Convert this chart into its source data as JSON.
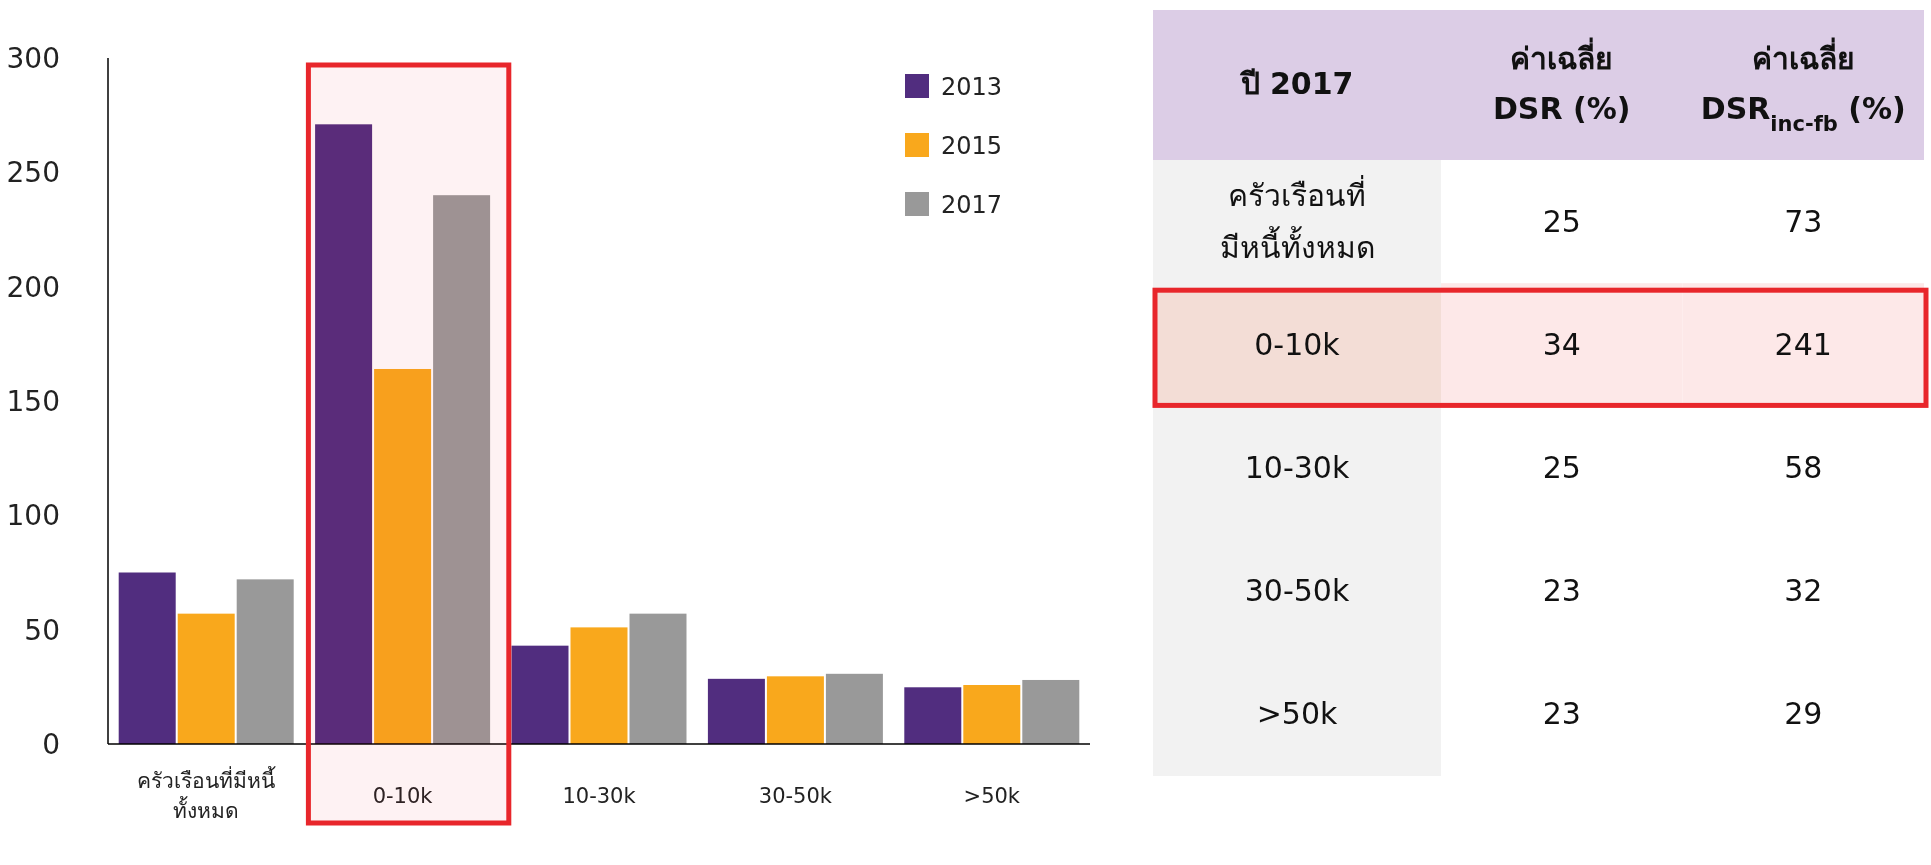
{
  "chart_data": [
    {
      "type": "bar",
      "categories": [
        "ครัวเรือนที่มีหนี้\nทั้งหมด",
        "0-10k",
        "10-30k",
        "30-50k",
        ">50k"
      ],
      "series": [
        {
          "name": "2013",
          "color": "#512d7f",
          "values": [
            75,
            271,
            43,
            28.5,
            24.8
          ]
        },
        {
          "name": "2015",
          "color": "#f9a81c",
          "values": [
            57,
            164,
            51,
            29.6,
            25.8
          ]
        },
        {
          "name": "2017",
          "color": "#999999",
          "values": [
            72,
            240,
            57,
            30.7,
            28
          ]
        }
      ],
      "ylim": [
        0,
        300
      ],
      "yticks": [
        0,
        50,
        100,
        150,
        200,
        250,
        300
      ],
      "grid": false,
      "legend": "top right",
      "bands": [
        {
          "axis": "x",
          "from": "0-10k",
          "to": "0-10k",
          "color": "#e8262b"
        }
      ]
    },
    {
      "type": "heatmap",
      "title": "ปี 2017",
      "data_labels": true,
      "categories": [
        "ค่าเฉลี่ย\nDSR (%)",
        "ค่าเฉลี่ย\nDSR$_{inc-fb}$ (%)"
      ],
      "y_categories": [
        "ครัวเรือนที่\nมีหนี้ทั้งหมด",
        "0-10k",
        "10-30k",
        "30-50k",
        ">50k"
      ],
      "cells": [
        [
          25,
          73
        ],
        [
          34,
          241
        ],
        [
          25,
          58
        ],
        [
          23,
          32
        ],
        [
          23,
          29
        ]
      ]
    }
  ]
}
